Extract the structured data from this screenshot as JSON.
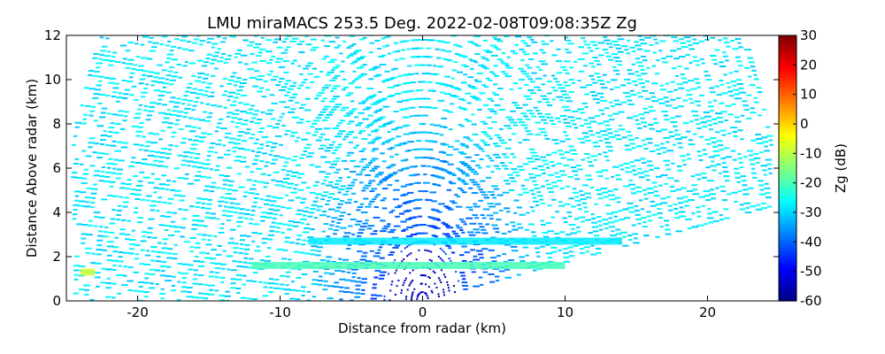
{
  "chart_data": {
    "type": "rhi",
    "title": "LMU miraMACS 253.5 Deg. 2022-02-08T09:08:35Z  Zg",
    "xlabel": "Distance from radar (km)",
    "ylabel": "Distance Above radar  (km)",
    "colorbar_label": "Zg (dB)",
    "colormap": "jet",
    "xlim": [
      -25,
      25
    ],
    "xticks": [
      -20,
      -10,
      0,
      10,
      20
    ],
    "ylim": [
      0,
      12
    ],
    "yticks": [
      0,
      2,
      4,
      6,
      8,
      10,
      12
    ],
    "clim": [
      -60,
      30
    ],
    "cticks": [
      -60,
      -50,
      -40,
      -30,
      -20,
      -10,
      0,
      10,
      20,
      30
    ],
    "layers": [
      {
        "x": [
          -12,
          10
        ],
        "y": 1.6,
        "value": -20
      },
      {
        "x": [
          -8,
          14
        ],
        "y": 2.7,
        "value": -28
      },
      {
        "x": [
          -24,
          -23
        ],
        "y": 1.3,
        "value": -8
      }
    ]
  }
}
